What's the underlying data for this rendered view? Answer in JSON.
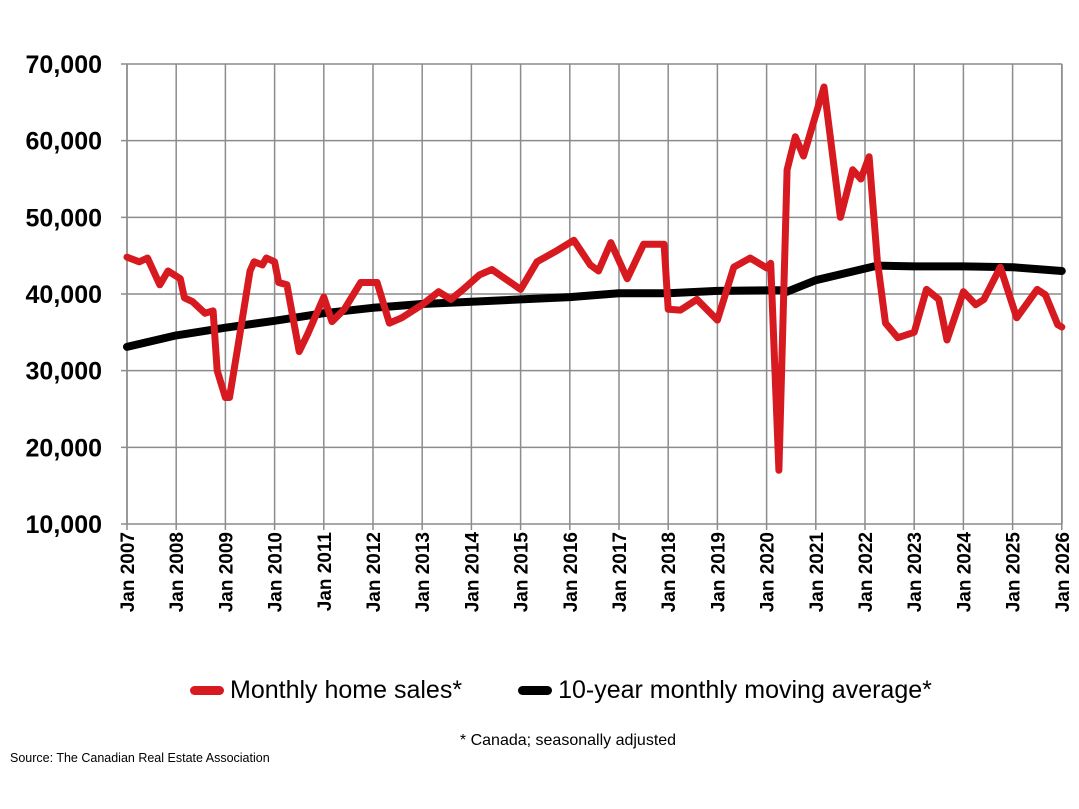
{
  "chart_data": {
    "type": "line",
    "title": "",
    "xlabel": "",
    "ylabel": "",
    "ylim": [
      10000,
      70000
    ],
    "yticks": [
      "10,000",
      "20,000",
      "30,000",
      "40,000",
      "50,000",
      "60,000",
      "70,000"
    ],
    "ytick_values": [
      10000,
      20000,
      30000,
      40000,
      50000,
      60000,
      70000
    ],
    "xticks": [
      "Jan 2007",
      "Jan 2008",
      "Jan 2009",
      "Jan 2010",
      "Jan 2011",
      "Jan 2012",
      "Jan 2013",
      "Jan 2014",
      "Jan 2015",
      "Jan 2016",
      "Jan 2017",
      "Jan 2018",
      "Jan 2019",
      "Jan 2020",
      "Jan 2021",
      "Jan 2022",
      "Jan 2023",
      "Jan 2024",
      "Jan 2025",
      "Jan 2026"
    ],
    "grid": true,
    "legend_position": "bottom",
    "series": [
      {
        "name": "Monthly home sales*",
        "color": "#d71920",
        "points": [
          [
            "2007-01",
            44800
          ],
          [
            "2007-04",
            44200
          ],
          [
            "2007-06",
            44700
          ],
          [
            "2007-09",
            41200
          ],
          [
            "2007-11",
            43000
          ],
          [
            "2008-02",
            42000
          ],
          [
            "2008-03",
            39500
          ],
          [
            "2008-05",
            39000
          ],
          [
            "2008-08",
            37500
          ],
          [
            "2008-10",
            37800
          ],
          [
            "2008-11",
            30000
          ],
          [
            "2009-01",
            26500
          ],
          [
            "2009-02",
            26500
          ],
          [
            "2009-04",
            33000
          ],
          [
            "2009-07",
            43000
          ],
          [
            "2009-08",
            44200
          ],
          [
            "2009-10",
            43800
          ],
          [
            "2009-11",
            44700
          ],
          [
            "2010-01",
            44200
          ],
          [
            "2010-02",
            41500
          ],
          [
            "2010-04",
            41200
          ],
          [
            "2010-07",
            32500
          ],
          [
            "2010-09",
            34700
          ],
          [
            "2011-01",
            39600
          ],
          [
            "2011-03",
            36400
          ],
          [
            "2011-06",
            38000
          ],
          [
            "2011-10",
            41500
          ],
          [
            "2012-02",
            41500
          ],
          [
            "2012-05",
            36200
          ],
          [
            "2012-08",
            36900
          ],
          [
            "2013-01",
            38600
          ],
          [
            "2013-05",
            40300
          ],
          [
            "2013-08",
            39300
          ],
          [
            "2013-11",
            40600
          ],
          [
            "2014-03",
            42500
          ],
          [
            "2014-06",
            43200
          ],
          [
            "2015-01",
            40600
          ],
          [
            "2015-05",
            44200
          ],
          [
            "2015-10",
            45700
          ],
          [
            "2016-02",
            47000
          ],
          [
            "2016-06",
            43800
          ],
          [
            "2016-08",
            43000
          ],
          [
            "2016-11",
            46700
          ],
          [
            "2017-03",
            42000
          ],
          [
            "2017-07",
            46500
          ],
          [
            "2017-12",
            46500
          ],
          [
            "2018-01",
            38000
          ],
          [
            "2018-04",
            37900
          ],
          [
            "2018-08",
            39300
          ],
          [
            "2019-01",
            36600
          ],
          [
            "2019-05",
            43500
          ],
          [
            "2019-09",
            44700
          ],
          [
            "2020-01",
            43400
          ],
          [
            "2020-02",
            44000
          ],
          [
            "2020-04",
            17000
          ],
          [
            "2020-06",
            56200
          ],
          [
            "2020-08",
            60500
          ],
          [
            "2020-10",
            58000
          ],
          [
            "2021-03",
            67000
          ],
          [
            "2021-07",
            50000
          ],
          [
            "2021-10",
            56200
          ],
          [
            "2021-12",
            55000
          ],
          [
            "2022-02",
            57900
          ],
          [
            "2022-04",
            44400
          ],
          [
            "2022-06",
            36200
          ],
          [
            "2022-09",
            34300
          ],
          [
            "2023-01",
            35000
          ],
          [
            "2023-04",
            40600
          ],
          [
            "2023-07",
            39300
          ],
          [
            "2023-09",
            34000
          ],
          [
            "2024-01",
            40300
          ],
          [
            "2024-04",
            38600
          ],
          [
            "2024-06",
            39300
          ],
          [
            "2024-10",
            43500
          ],
          [
            "2025-02",
            36900
          ],
          [
            "2025-07",
            40600
          ],
          [
            "2025-09",
            39900
          ],
          [
            "2025-12",
            36000
          ],
          [
            "2026-01",
            35700
          ]
        ]
      },
      {
        "name": "10-year monthly moving average*",
        "color": "#000000",
        "points": [
          [
            "2007-01",
            33100
          ],
          [
            "2008-01",
            34600
          ],
          [
            "2009-01",
            35600
          ],
          [
            "2010-01",
            36500
          ],
          [
            "2011-01",
            37500
          ],
          [
            "2012-01",
            38200
          ],
          [
            "2013-01",
            38700
          ],
          [
            "2014-01",
            39000
          ],
          [
            "2015-01",
            39300
          ],
          [
            "2016-01",
            39600
          ],
          [
            "2017-01",
            40100
          ],
          [
            "2018-01",
            40100
          ],
          [
            "2019-01",
            40400
          ],
          [
            "2020-04",
            40500
          ],
          [
            "2020-06",
            40300
          ],
          [
            "2021-01",
            41800
          ],
          [
            "2022-04",
            43700
          ],
          [
            "2023-01",
            43600
          ],
          [
            "2024-01",
            43600
          ],
          [
            "2025-01",
            43500
          ],
          [
            "2026-01",
            43000
          ]
        ]
      }
    ],
    "footnote": "* Canada; seasonally adjusted",
    "source": "Source: The Canadian Real Estate Association"
  }
}
